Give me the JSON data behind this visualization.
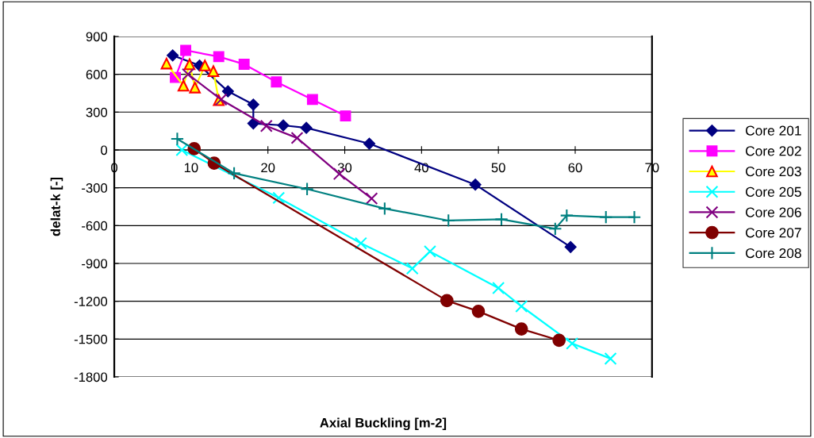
{
  "chart_data": {
    "type": "line",
    "xlabel": "Axial Buckling [m-2]",
    "ylabel": "delat-k [-]",
    "xlim": [
      0,
      70
    ],
    "xticks": [
      0,
      10,
      20,
      30,
      40,
      50,
      60,
      70
    ],
    "ylim": [
      -1800,
      900
    ],
    "yticks": [
      -1800,
      -1500,
      -1200,
      -900,
      -600,
      -300,
      0,
      300,
      600,
      900
    ],
    "grid": "y",
    "legend": "right",
    "series": [
      {
        "name": "Core 201",
        "color": "#000080",
        "marker": "diamond",
        "x": [
          7.6,
          11.1,
          14.8,
          18.1,
          18.1,
          22.0,
          25.0,
          33.2,
          47.0,
          59.4
        ],
        "values": [
          750,
          670,
          465,
          360,
          210,
          195,
          175,
          50,
          -275,
          -770
        ]
      },
      {
        "name": "Core 202",
        "color": "#ff00ff",
        "marker": "square",
        "x": [
          7.95,
          9.3,
          13.6,
          16.9,
          21.1,
          25.8,
          30.1
        ],
        "values": [
          575,
          790,
          740,
          680,
          540,
          400,
          270
        ]
      },
      {
        "name": "Core 203",
        "color": "#ffff00",
        "marker": "triangle",
        "x": [
          6.8,
          9.0,
          9.8,
          10.5,
          11.8,
          12.9,
          13.6
        ],
        "values": [
          685,
          510,
          680,
          495,
          670,
          625,
          395
        ]
      },
      {
        "name": "Core 205",
        "color": "#00ffff",
        "marker": "cross",
        "x": [
          8.8,
          21.4,
          32.1,
          38.8,
          41.1,
          50.0,
          53.0,
          59.6,
          64.6
        ],
        "values": [
          0,
          -380,
          -740,
          -940,
          -805,
          -1095,
          -1240,
          -1535,
          -1655
        ]
      },
      {
        "name": "Core 206",
        "color": "#800080",
        "marker": "cross",
        "x": [
          9.6,
          13.9,
          19.8,
          23.8,
          29.3,
          33.5
        ],
        "values": [
          600,
          400,
          190,
          95,
          -190,
          -385
        ]
      },
      {
        "name": "Core 207",
        "color": "#800000",
        "marker": "circle",
        "x": [
          10.4,
          13.0,
          43.3,
          47.4,
          53.0,
          57.9
        ],
        "values": [
          10,
          -105,
          -1195,
          -1280,
          -1420,
          -1510
        ]
      },
      {
        "name": "Core 208",
        "color": "#008080",
        "marker": "plus",
        "x": [
          8.2,
          15.6,
          25.1,
          35.2,
          43.5,
          50.4,
          57.4,
          58.9,
          64.0,
          67.7
        ],
        "values": [
          88,
          -185,
          -310,
          -465,
          -560,
          -550,
          -625,
          -520,
          -533,
          -533
        ]
      }
    ]
  }
}
